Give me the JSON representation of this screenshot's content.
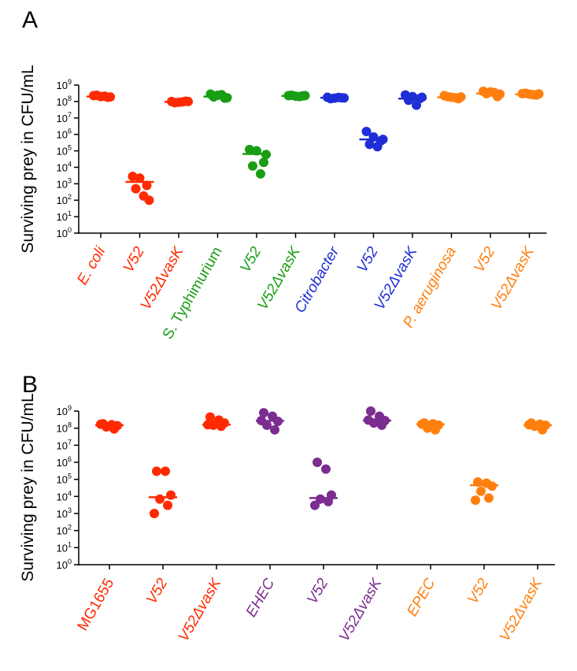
{
  "chart_data": [
    {
      "panel_label": "A",
      "type": "scatter",
      "yscale": "log",
      "ylabel": "Surviving prey in CFU/mL",
      "ylim": [
        1,
        1000000000
      ],
      "yticks": [
        {
          "base": "10",
          "exp": "9"
        },
        {
          "base": "10",
          "exp": "8"
        },
        {
          "base": "10",
          "exp": "7"
        },
        {
          "base": "10",
          "exp": "6"
        },
        {
          "base": "10",
          "exp": "5"
        },
        {
          "base": "10",
          "exp": "4"
        },
        {
          "base": "10",
          "exp": "3"
        },
        {
          "base": "10",
          "exp": "2"
        },
        {
          "base": "10",
          "exp": "1"
        },
        {
          "base": "10",
          "exp": "0"
        }
      ],
      "categories": [
        {
          "label": "E. coli",
          "italic": true,
          "color": "#FF2A00",
          "mean": 200000000,
          "points": [
            230000000,
            200000000,
            180000000,
            240000000,
            210000000,
            190000000
          ]
        },
        {
          "label": "V52",
          "italic": true,
          "color": "#FF2A00",
          "mean": 1300,
          "points": [
            2800,
            2200,
            800,
            500,
            180,
            100
          ]
        },
        {
          "label": "V52ΔvasK",
          "italic": true,
          "color": "#FF2A00",
          "mean": 95000000,
          "points": [
            100000000,
            90000000,
            105000000,
            85000000,
            95000000,
            100000000
          ]
        },
        {
          "label": "S. Typhimurium",
          "italic": false,
          "color": "#189E14",
          "mean": 200000000,
          "points": [
            280000000,
            240000000,
            160000000,
            190000000,
            260000000,
            170000000
          ]
        },
        {
          "label": "V52",
          "italic": true,
          "color": "#189E14",
          "mean": 65000,
          "points": [
            120000,
            100000,
            20000,
            12000,
            4000,
            60000
          ]
        },
        {
          "label": "V52ΔvasK",
          "italic": true,
          "color": "#189E14",
          "mean": 220000000,
          "points": [
            230000000,
            210000000,
            220000000,
            240000000,
            200000000,
            230000000
          ]
        },
        {
          "label": "Citrobacter",
          "italic": true,
          "color": "#1F2ED6",
          "mean": 170000000,
          "points": [
            180000000,
            160000000,
            170000000,
            150000000,
            175000000,
            165000000
          ]
        },
        {
          "label": "V52",
          "italic": true,
          "color": "#1F2ED6",
          "mean": 500000,
          "points": [
            1500000,
            700000,
            400000,
            250000,
            180000,
            500000
          ]
        },
        {
          "label": "V52ΔvasK",
          "italic": true,
          "color": "#1F2ED6",
          "mean": 150000000,
          "points": [
            250000000,
            200000000,
            150000000,
            120000000,
            60000000,
            180000000
          ]
        },
        {
          "label": "P. aeruginosa",
          "italic": true,
          "color": "#FF7F0E",
          "mean": 180000000,
          "points": [
            230000000,
            180000000,
            150000000,
            200000000,
            170000000,
            190000000
          ]
        },
        {
          "label": "V52",
          "italic": true,
          "color": "#FF7F0E",
          "mean": 300000000,
          "points": [
            420000000,
            380000000,
            200000000,
            300000000,
            350000000,
            280000000
          ]
        },
        {
          "label": "V52ΔvasK",
          "italic": true,
          "color": "#FF7F0E",
          "mean": 270000000,
          "points": [
            300000000,
            280000000,
            250000000,
            320000000,
            260000000,
            290000000
          ]
        }
      ]
    },
    {
      "panel_label": "B",
      "type": "scatter",
      "yscale": "log",
      "ylabel": "Surviving prey in CFU/mL",
      "ylim": [
        1,
        1000000000
      ],
      "yticks": [
        {
          "base": "10",
          "exp": "9"
        },
        {
          "base": "10",
          "exp": "8"
        },
        {
          "base": "10",
          "exp": "7"
        },
        {
          "base": "10",
          "exp": "6"
        },
        {
          "base": "10",
          "exp": "5"
        },
        {
          "base": "10",
          "exp": "4"
        },
        {
          "base": "10",
          "exp": "3"
        },
        {
          "base": "10",
          "exp": "2"
        },
        {
          "base": "10",
          "exp": "1"
        },
        {
          "base": "10",
          "exp": "0"
        }
      ],
      "categories": [
        {
          "label": "MG1655",
          "italic": false,
          "color": "#FF2A00",
          "mean": 150000000,
          "points": [
            180000000,
            160000000,
            140000000,
            120000000,
            90000000,
            170000000
          ]
        },
        {
          "label": "V52",
          "italic": true,
          "color": "#FF2A00",
          "mean": 9000,
          "points": [
            300000,
            300000,
            12000,
            7000,
            3000,
            1000
          ]
        },
        {
          "label": "V52ΔvasK",
          "italic": true,
          "color": "#FF2A00",
          "mean": 160000000,
          "points": [
            450000000,
            300000000,
            200000000,
            150000000,
            130000000,
            160000000
          ]
        },
        {
          "label": "EHEC",
          "italic": true,
          "color": "#7B2D90",
          "mean": 270000000,
          "points": [
            800000000,
            500000000,
            250000000,
            150000000,
            80000000,
            280000000
          ]
        },
        {
          "label": "V52",
          "italic": true,
          "color": "#7B2D90",
          "mean": 8000,
          "points": [
            1000000,
            400000,
            12000,
            7000,
            5000,
            3000
          ]
        },
        {
          "label": "V52ΔvasK",
          "italic": true,
          "color": "#7B2D90",
          "mean": 280000000,
          "points": [
            1000000000,
            500000000,
            280000000,
            200000000,
            150000000,
            300000000
          ]
        },
        {
          "label": "EPEC",
          "italic": true,
          "color": "#FF7F0E",
          "mean": 170000000,
          "points": [
            200000000,
            180000000,
            150000000,
            100000000,
            80000000,
            170000000
          ]
        },
        {
          "label": "V52",
          "italic": true,
          "color": "#FF7F0E",
          "mean": 45000,
          "points": [
            70000,
            60000,
            40000,
            20000,
            8000,
            6000
          ]
        },
        {
          "label": "V52ΔvasK",
          "italic": true,
          "color": "#FF7F0E",
          "mean": 150000000,
          "points": [
            200000000,
            170000000,
            150000000,
            130000000,
            80000000,
            160000000
          ]
        }
      ]
    }
  ]
}
